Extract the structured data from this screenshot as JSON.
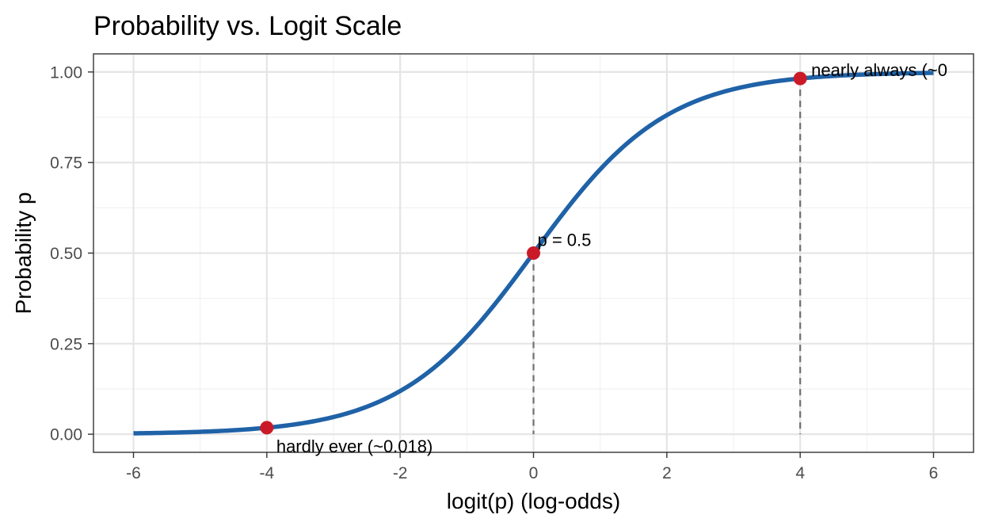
{
  "chart_data": {
    "type": "line",
    "title": "Probability vs. Logit Scale",
    "xlabel": "logit(p) (log-odds)",
    "ylabel": "Probability p",
    "xlim": [
      -6.6,
      6.6
    ],
    "ylim": [
      -0.05,
      1.05
    ],
    "x_ticks": [
      -6,
      -4,
      -2,
      0,
      2,
      4,
      6
    ],
    "x_tick_labels": [
      "-6",
      "-4",
      "-2",
      "0",
      "2",
      "4",
      "6"
    ],
    "y_ticks": [
      0,
      0.25,
      0.5,
      0.75,
      1
    ],
    "y_tick_labels": [
      "0.00",
      "0.25",
      "0.50",
      "0.75",
      "1.00"
    ],
    "grid": true,
    "curve": {
      "function": "logistic",
      "x_range": [
        -6,
        6
      ],
      "color": "#1f62a7"
    },
    "points": [
      {
        "x": -4,
        "y": 0.018,
        "label": "hardly ever (~0.018)",
        "label_position": "below-right"
      },
      {
        "x": 0,
        "y": 0.5,
        "label": "p = 0.5",
        "label_position": "above-right"
      },
      {
        "x": 4,
        "y": 0.982,
        "label": "nearly always (~0",
        "label_position": "right"
      }
    ],
    "point_color": "#cb1a27",
    "reference_lines": {
      "style": "dashed",
      "color": "#707070",
      "x": [
        0,
        4
      ]
    }
  }
}
